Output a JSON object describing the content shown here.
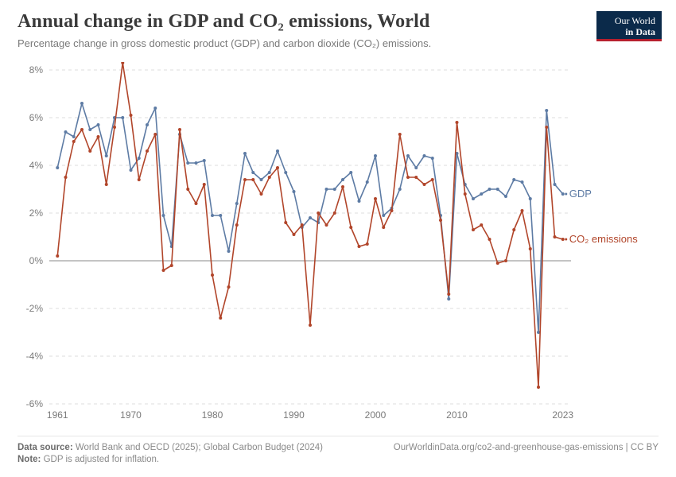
{
  "header": {
    "title": "Annual change in GDP and CO₂ emissions, World",
    "subtitle": "Percentage change in gross domestic product (GDP) and carbon dioxide (CO₂) emissions."
  },
  "logo": {
    "line1": "Our World",
    "line2": "in Data"
  },
  "footer": {
    "source_label": "Data source:",
    "source_text": "World Bank and OECD (2025); Global Carbon Budget (2024)",
    "right_text": "OurWorldinData.org/co2-and-greenhouse-gas-emissions | CC BY",
    "note_label": "Note:",
    "note_text": "GDP is adjusted for inflation."
  },
  "chart": {
    "type": "line",
    "background_color": "#ffffff",
    "grid_color": "#dcdcdc",
    "zero_line_color": "#8a8a8a",
    "label_fontsize": 12,
    "series_label_fontsize": 13,
    "x": {
      "min": 1960,
      "max": 2024,
      "ticks": [
        1961,
        1970,
        1980,
        1990,
        2000,
        2010,
        2023
      ]
    },
    "y": {
      "min": -6,
      "max": 8,
      "ticks": [
        -6,
        -4,
        -2,
        0,
        2,
        4,
        6,
        8
      ],
      "tick_format_suffix": "%"
    },
    "line_width": 1.6,
    "marker_radius": 2.0,
    "series": [
      {
        "key": "gdp",
        "label": "GDP",
        "color": "#5d7ba4",
        "x": [
          1961,
          1962,
          1963,
          1964,
          1965,
          1966,
          1967,
          1968,
          1969,
          1970,
          1971,
          1972,
          1973,
          1974,
          1975,
          1976,
          1977,
          1978,
          1979,
          1980,
          1981,
          1982,
          1983,
          1984,
          1985,
          1986,
          1987,
          1988,
          1989,
          1990,
          1991,
          1992,
          1993,
          1994,
          1995,
          1996,
          1997,
          1998,
          1999,
          2000,
          2001,
          2002,
          2003,
          2004,
          2005,
          2006,
          2007,
          2008,
          2009,
          2010,
          2011,
          2012,
          2013,
          2014,
          2015,
          2016,
          2017,
          2018,
          2019,
          2020,
          2021,
          2022,
          2023
        ],
        "y": [
          3.9,
          5.4,
          5.2,
          6.6,
          5.5,
          5.7,
          4.4,
          6.0,
          6.0,
          3.8,
          4.3,
          5.7,
          6.4,
          1.9,
          0.6,
          5.3,
          4.1,
          4.1,
          4.2,
          1.9,
          1.9,
          0.4,
          2.4,
          4.5,
          3.7,
          3.4,
          3.7,
          4.6,
          3.7,
          2.9,
          1.4,
          1.8,
          1.6,
          3.0,
          3.0,
          3.4,
          3.7,
          2.5,
          3.3,
          4.4,
          1.9,
          2.2,
          3.0,
          4.4,
          3.9,
          4.4,
          4.3,
          1.9,
          -1.6,
          4.5,
          3.2,
          2.6,
          2.8,
          3.0,
          3.0,
          2.7,
          3.4,
          3.3,
          2.6,
          -3.0,
          6.3,
          3.2,
          2.8
        ]
      },
      {
        "key": "co2",
        "label": "CO₂ emissions",
        "color": "#b1452a",
        "x": [
          1961,
          1962,
          1963,
          1964,
          1965,
          1966,
          1967,
          1968,
          1969,
          1970,
          1971,
          1972,
          1973,
          1974,
          1975,
          1976,
          1977,
          1978,
          1979,
          1980,
          1981,
          1982,
          1983,
          1984,
          1985,
          1986,
          1987,
          1988,
          1989,
          1990,
          1991,
          1992,
          1993,
          1994,
          1995,
          1996,
          1997,
          1998,
          1999,
          2000,
          2001,
          2002,
          2003,
          2004,
          2005,
          2006,
          2007,
          2008,
          2009,
          2010,
          2011,
          2012,
          2013,
          2014,
          2015,
          2016,
          2017,
          2018,
          2019,
          2020,
          2021,
          2022,
          2023
        ],
        "y": [
          0.2,
          3.5,
          5.0,
          5.5,
          4.6,
          5.2,
          3.2,
          5.6,
          8.3,
          6.1,
          3.4,
          4.6,
          5.3,
          -0.4,
          -0.2,
          5.5,
          3.0,
          2.4,
          3.2,
          -0.6,
          -2.4,
          -1.1,
          1.5,
          3.4,
          3.4,
          2.8,
          3.5,
          3.9,
          1.6,
          1.1,
          1.5,
          -2.7,
          2.0,
          1.5,
          2.0,
          3.1,
          1.4,
          0.6,
          0.7,
          2.6,
          1.4,
          2.1,
          5.3,
          3.5,
          3.5,
          3.2,
          3.4,
          1.7,
          -1.4,
          5.8,
          2.8,
          1.3,
          1.5,
          0.9,
          -0.1,
          0.0,
          1.3,
          2.1,
          0.5,
          -5.3,
          5.6,
          1.0,
          0.9
        ]
      }
    ]
  }
}
